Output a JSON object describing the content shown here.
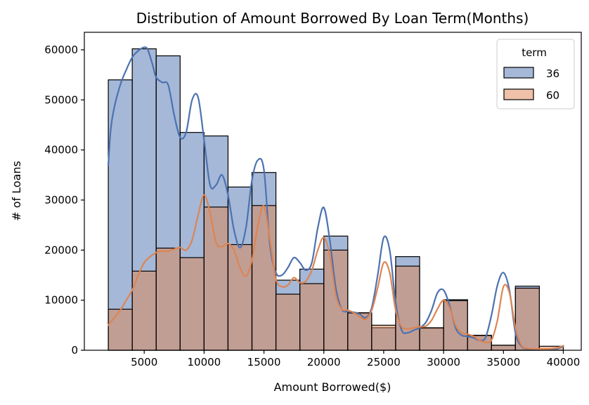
{
  "chart_data": {
    "type": "bar",
    "subtype": "stacked-histogram-with-kde",
    "title": "Distribution of Amount Borrowed By Loan Term(Months)",
    "xlabel": "Amount Borrowed($)",
    "ylabel": "# of Loans",
    "xlim": [
      0,
      41500
    ],
    "ylim": [
      0,
      63500
    ],
    "xticks": [
      5000,
      10000,
      15000,
      20000,
      25000,
      30000,
      35000,
      40000
    ],
    "yticks": [
      0,
      10000,
      20000,
      30000,
      40000,
      50000,
      60000
    ],
    "grid": false,
    "legend": {
      "title": "term",
      "placement": "top-right"
    },
    "bin_edges": [
      2000,
      4000,
      6000,
      8000,
      10000,
      12000,
      14000,
      16000,
      18000,
      20000,
      22000,
      24000,
      26000,
      28000,
      30000,
      32000,
      34000,
      36000,
      38000,
      40000
    ],
    "series": [
      {
        "name": "36",
        "color": "#4c72b0",
        "values": [
          54000,
          60200,
          58800,
          43500,
          42800,
          32600,
          35500,
          14000,
          16200,
          22800,
          7400,
          4500,
          18700,
          4400,
          10100,
          2900,
          1000,
          12800,
          0
        ],
        "kde": {
          "x": [
            2000,
            2200,
            2500,
            3000,
            3500,
            4000,
            4500,
            5000,
            5300,
            5700,
            6000,
            6500,
            7000,
            7500,
            8000,
            8500,
            9000,
            9500,
            10000,
            10500,
            11000,
            11500,
            12000,
            12500,
            13000,
            13500,
            14000,
            14500,
            15000,
            15500,
            16000,
            16500,
            17000,
            17500,
            18000,
            18500,
            19000,
            19500,
            20000,
            20500,
            21000,
            21500,
            22000,
            22500,
            23000,
            23500,
            24000,
            24500,
            25000,
            25500,
            26000,
            26500,
            27000,
            27500,
            28000,
            28500,
            29000,
            29500,
            30000,
            30500,
            31000,
            31500,
            32000,
            32500,
            33000,
            33500,
            34000,
            34500,
            35000,
            35500,
            36000,
            36500,
            37000,
            37500,
            38000,
            38500,
            39000,
            39500,
            40000
          ],
          "y": [
            37000,
            44000,
            48500,
            53000,
            56000,
            58500,
            59800,
            60500,
            60000,
            57000,
            54500,
            53500,
            53000,
            47000,
            42500,
            43500,
            50000,
            50500,
            42000,
            33000,
            33000,
            35000,
            31000,
            24000,
            20500,
            24500,
            34000,
            38000,
            36000,
            21000,
            15500,
            15000,
            16500,
            18500,
            17500,
            16000,
            17500,
            24500,
            28500,
            22000,
            12500,
            8200,
            7700,
            7600,
            7200,
            6500,
            8500,
            15000,
            22500,
            20000,
            9500,
            4000,
            3500,
            4000,
            4500,
            5500,
            8000,
            11500,
            12000,
            9000,
            4500,
            3000,
            2800,
            2500,
            2000,
            2500,
            7000,
            13000,
            15500,
            12000,
            3500,
            800,
            300,
            200,
            150,
            150,
            200,
            300,
            800
          ]
        }
      },
      {
        "name": "60",
        "color": "#dd8452",
        "values": [
          8200,
          15800,
          20400,
          18500,
          28600,
          21100,
          28900,
          11200,
          13300,
          20000,
          7500,
          5000,
          16800,
          4500,
          9900,
          3000,
          1000,
          12400,
          800
        ],
        "kde": {
          "x": [
            2000,
            2500,
            3000,
            3500,
            4000,
            4500,
            5000,
            5500,
            6000,
            6500,
            7000,
            7500,
            8000,
            8500,
            9000,
            9500,
            10000,
            10500,
            11000,
            11500,
            12000,
            12500,
            13000,
            13500,
            14000,
            14500,
            15000,
            15500,
            16000,
            16500,
            17000,
            17500,
            18000,
            18500,
            19000,
            19500,
            20000,
            20500,
            21000,
            21500,
            22000,
            22500,
            23000,
            23500,
            24000,
            24500,
            25000,
            25500,
            26000,
            26500,
            27000,
            27500,
            28000,
            28500,
            29000,
            29500,
            30000,
            30500,
            31000,
            31500,
            32000,
            32500,
            33000,
            33500,
            34000,
            34500,
            35000,
            35500,
            36000,
            36500,
            37000,
            37500,
            38000,
            38500,
            39000,
            39500,
            40000
          ],
          "y": [
            5000,
            6500,
            8000,
            10000,
            12000,
            15000,
            17500,
            18700,
            19500,
            19800,
            19800,
            20200,
            20500,
            20000,
            22000,
            27000,
            31000,
            27500,
            21500,
            20700,
            21300,
            20000,
            16500,
            14800,
            18000,
            25000,
            28800,
            22000,
            14200,
            12700,
            13000,
            14500,
            13500,
            13800,
            16000,
            20000,
            22500,
            19000,
            11000,
            8200,
            8000,
            7500,
            6700,
            6200,
            8000,
            12500,
            17500,
            15500,
            8000,
            4700,
            4300,
            4500,
            4700,
            4800,
            6000,
            8300,
            10000,
            8500,
            5000,
            3500,
            3200,
            2800,
            2000,
            1600,
            2000,
            6000,
            12700,
            11500,
            4500,
            1000,
            400,
            300,
            250,
            250,
            300,
            500,
            900
          ]
        }
      }
    ]
  }
}
